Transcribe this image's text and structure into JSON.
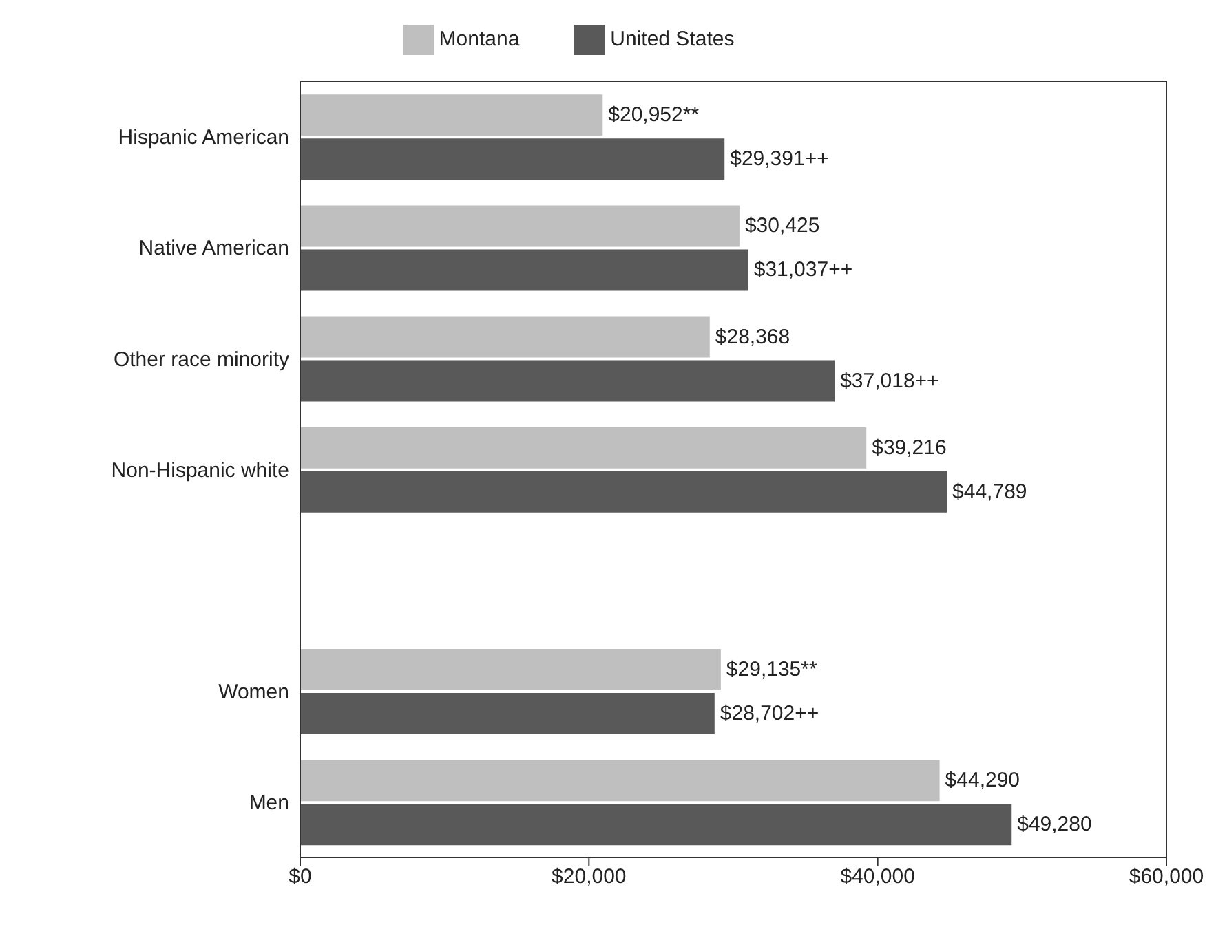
{
  "chart_data": {
    "type": "bar",
    "orientation": "horizontal",
    "categories": [
      "Hispanic American",
      "Native American",
      "Other race minority",
      "Non-Hispanic white",
      null,
      "Women",
      "Men"
    ],
    "series": [
      {
        "name": "Montana",
        "color": "#bfbfbf",
        "values": [
          20952,
          30425,
          28368,
          39216,
          null,
          29135,
          44290
        ],
        "value_labels": [
          "$20,952**",
          "$30,425",
          "$28,368",
          "$39,216",
          null,
          "$29,135**",
          "$44,290"
        ]
      },
      {
        "name": "United States",
        "color": "#595959",
        "values": [
          29391,
          31037,
          37018,
          44789,
          null,
          28702,
          49280
        ],
        "value_labels": [
          "$29,391++",
          "$31,037++",
          "$37,018++",
          "$44,789",
          null,
          "$28,702++",
          "$49,280"
        ]
      }
    ],
    "xlim": [
      0,
      60000
    ],
    "xticks": [
      {
        "value": 0,
        "label": "$0"
      },
      {
        "value": 20000,
        "label": "$20,000"
      },
      {
        "value": 40000,
        "label": "$40,000"
      },
      {
        "value": 60000,
        "label": "$60,000"
      }
    ],
    "legend": "top",
    "grid": false
  }
}
